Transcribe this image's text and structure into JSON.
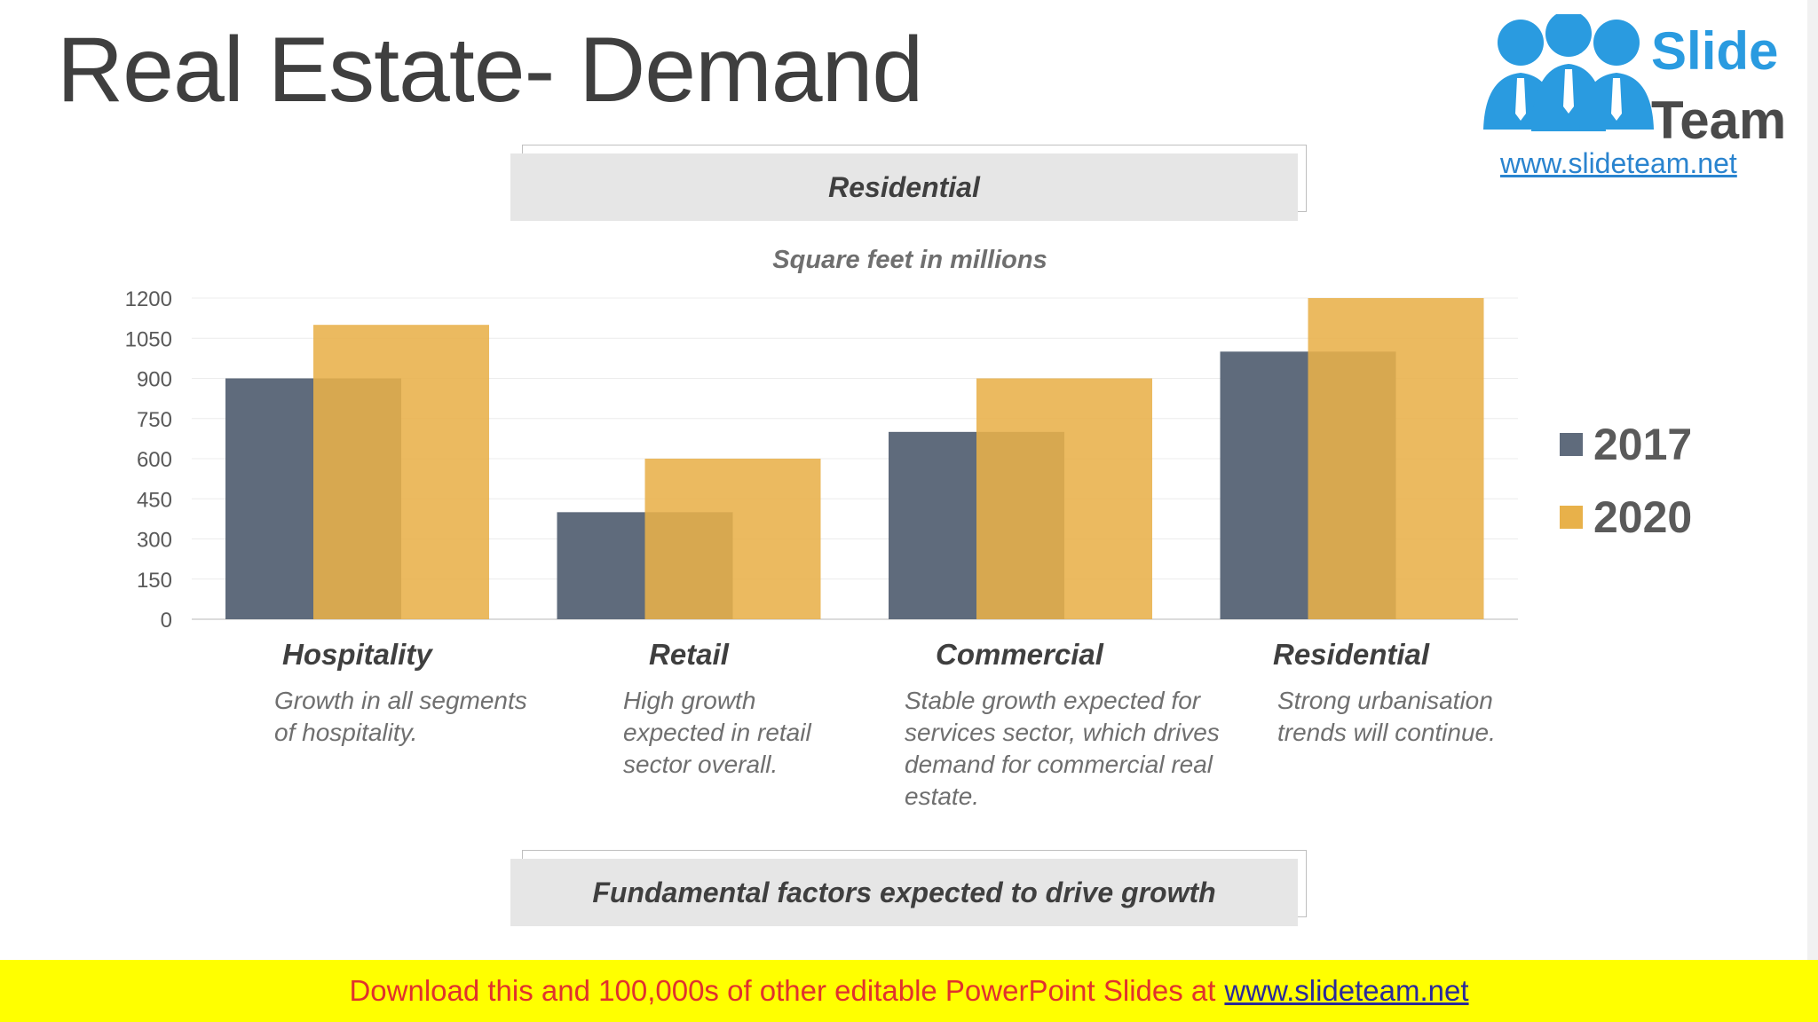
{
  "slide": {
    "title": "Real Estate- Demand",
    "header_box": "Residential",
    "footer_box": "Fundamental factors expected to drive growth"
  },
  "logo": {
    "name_line1": "Slide",
    "name_line2": "Team",
    "url": "www.slideteam.net"
  },
  "categories_text": [
    {
      "label": "Hospitality",
      "desc": [
        "Growth in all segments",
        "of hospitality."
      ]
    },
    {
      "label": "Retail",
      "desc": [
        "High growth",
        "expected in retail",
        "sector overall."
      ]
    },
    {
      "label": "Commercial",
      "desc": [
        "Stable growth expected for",
        "services sector, which drives",
        "demand for commercial real",
        "estate."
      ]
    },
    {
      "label": "Residential",
      "desc": [
        "Strong urbanisation",
        "trends will continue."
      ]
    }
  ],
  "chart_data": {
    "type": "bar",
    "title": "Square feet in millions",
    "categories": [
      "Hospitality",
      "Retail",
      "Commercial",
      "Residential"
    ],
    "series": [
      {
        "name": "2017",
        "values": [
          900,
          400,
          700,
          1000
        ],
        "color": "#5f6b7c"
      },
      {
        "name": "2020",
        "values": [
          1100,
          600,
          900,
          1200
        ],
        "color": "#e8b14a"
      }
    ],
    "yticks": [
      "0",
      "150",
      "300",
      "450",
      "600",
      "750",
      "900",
      "1050",
      "1200"
    ],
    "ylim": [
      0,
      1200
    ],
    "grid": true,
    "legend": "right"
  },
  "banner": {
    "text": "Download this and 100,000s of other editable PowerPoint Slides at",
    "link": "www.slideteam.net"
  }
}
